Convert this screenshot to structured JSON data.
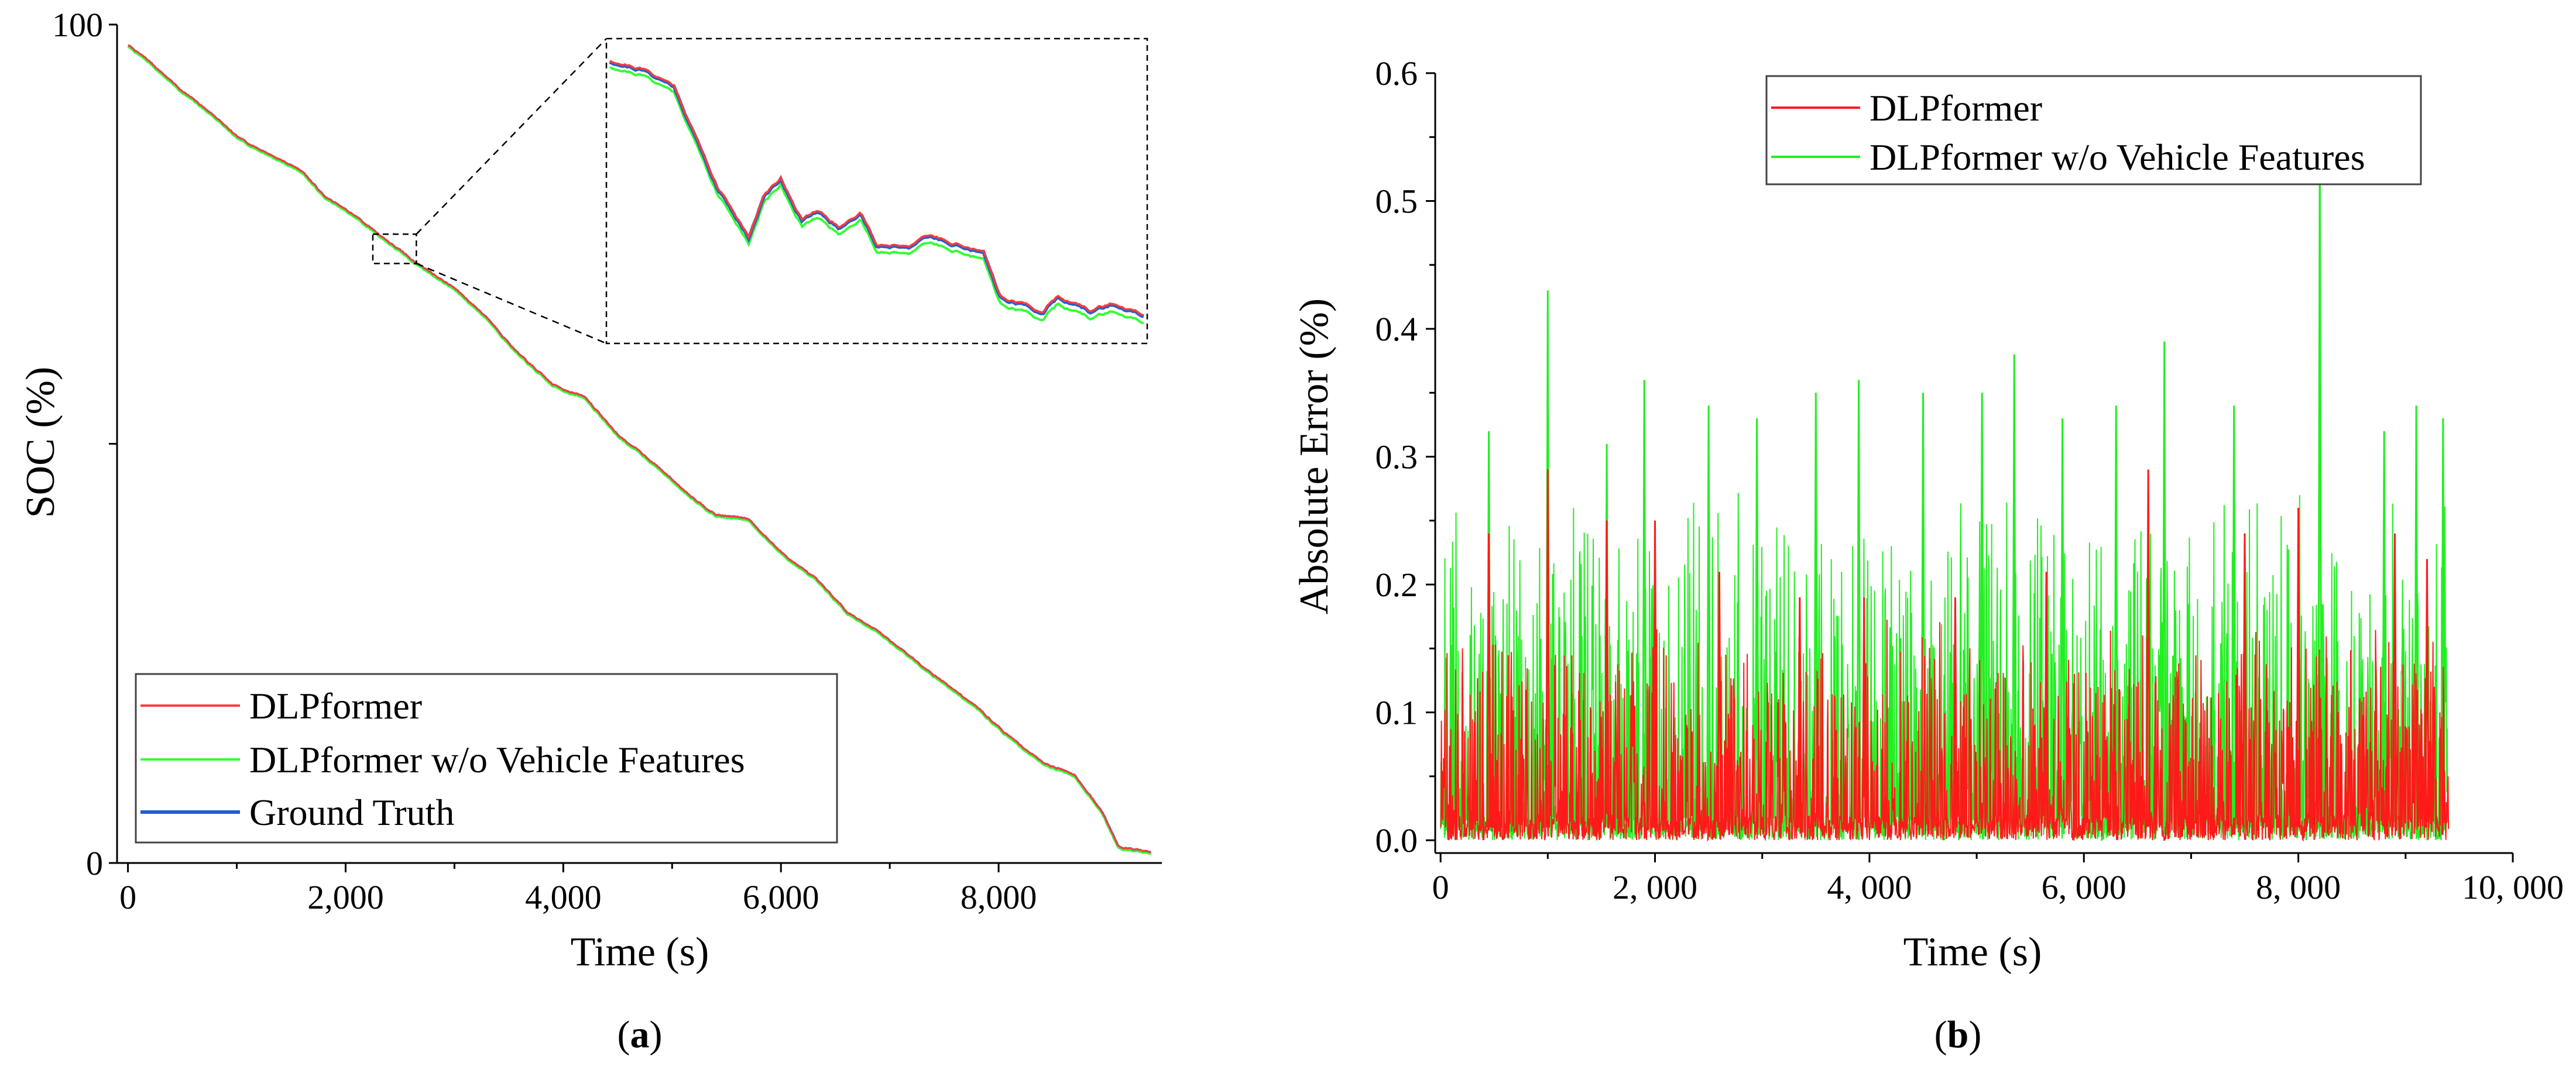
{
  "chart_data": [
    {
      "panel": "a",
      "type": "line",
      "caption": "(a)",
      "caption_letter": "a",
      "xlabel": "Time (s)",
      "ylabel": "SOC (%)",
      "xlim": [
        -100,
        9500
      ],
      "ylim": [
        0,
        100
      ],
      "x_ticks": [
        0,
        2000,
        4000,
        6000,
        8000
      ],
      "x_tick_labels": [
        "0",
        "2,000",
        "4,000",
        "6,000",
        "8,000"
      ],
      "y_tick_labels": [
        "0",
        "100"
      ],
      "y_major_ticks": [
        0,
        50,
        100
      ],
      "duration_s": 9400,
      "soc_keypoints": {
        "x": [
          0,
          200,
          500,
          800,
          1000,
          1300,
          1600,
          1800,
          2100,
          2400,
          2600,
          3000,
          3300,
          3600,
          3900,
          4200,
          4500,
          4800,
          5100,
          5400,
          5700,
          6000,
          6300,
          6600,
          6900,
          7200,
          7500,
          7800,
          8100,
          8400,
          8700,
          8950,
          9100,
          9400
        ],
        "y": [
          97.5,
          95.5,
          92.0,
          89.0,
          86.5,
          84.5,
          82.5,
          79.5,
          77.0,
          74.0,
          72.0,
          68.5,
          65.0,
          60.5,
          57.0,
          55.5,
          51.0,
          48.0,
          44.5,
          41.5,
          41.0,
          37.0,
          34.0,
          30.0,
          27.5,
          24.5,
          21.5,
          18.5,
          15.0,
          12.0,
          10.5,
          6.0,
          2.0,
          1.2
        ]
      },
      "legend": [
        "DLPformer",
        "DLPformer w/o Vehicle Features",
        "Ground Truth"
      ],
      "colors": [
        "#ff3b3b",
        "#33ff33",
        "#1f5fcf"
      ],
      "inset": {
        "source_x_range": [
          2250,
          2650
        ],
        "source_y_range": [
          71.5,
          75.0
        ],
        "description": "zoomed view of the three SOC curves"
      }
    },
    {
      "panel": "b",
      "type": "line",
      "caption": "(b)",
      "caption_letter": "b",
      "xlabel": "Time (s)",
      "ylabel": "Absolute Error (%)",
      "xlim": [
        -50,
        10000
      ],
      "ylim": [
        -0.01,
        0.6
      ],
      "x_ticks": [
        0,
        2000,
        4000,
        6000,
        8000,
        10000
      ],
      "x_tick_labels": [
        "0",
        "2, 000",
        "4, 000",
        "6, 000",
        "8, 000",
        "10, 000"
      ],
      "y_ticks": [
        0.0,
        0.1,
        0.2,
        0.3,
        0.4,
        0.5,
        0.6
      ],
      "y_tick_labels": [
        "0.0",
        "0.1",
        "0.2",
        "0.3",
        "0.4",
        "0.5",
        "0.6"
      ],
      "duration_s": 9400,
      "series": [
        {
          "name": "DLPformer w/o Vehicle Features",
          "color": "#22ee22",
          "typical_max": 0.26,
          "peaks": [
            {
              "x": 450,
              "y": 0.32
            },
            {
              "x": 1000,
              "y": 0.43
            },
            {
              "x": 1550,
              "y": 0.31
            },
            {
              "x": 1900,
              "y": 0.36
            },
            {
              "x": 2500,
              "y": 0.34
            },
            {
              "x": 2950,
              "y": 0.33
            },
            {
              "x": 3500,
              "y": 0.35
            },
            {
              "x": 3900,
              "y": 0.36
            },
            {
              "x": 4500,
              "y": 0.35
            },
            {
              "x": 5050,
              "y": 0.35
            },
            {
              "x": 5350,
              "y": 0.38
            },
            {
              "x": 5800,
              "y": 0.33
            },
            {
              "x": 6300,
              "y": 0.34
            },
            {
              "x": 6750,
              "y": 0.39
            },
            {
              "x": 7400,
              "y": 0.34
            },
            {
              "x": 8200,
              "y": 0.55
            },
            {
              "x": 8800,
              "y": 0.32
            },
            {
              "x": 9100,
              "y": 0.34
            },
            {
              "x": 9350,
              "y": 0.33
            }
          ]
        },
        {
          "name": "DLPformer",
          "color": "#ff1a1a",
          "typical_max": 0.16,
          "peaks": [
            {
              "x": 450,
              "y": 0.24
            },
            {
              "x": 1000,
              "y": 0.29
            },
            {
              "x": 1550,
              "y": 0.25
            },
            {
              "x": 2000,
              "y": 0.25
            },
            {
              "x": 2600,
              "y": 0.21
            },
            {
              "x": 3350,
              "y": 0.19
            },
            {
              "x": 3950,
              "y": 0.19
            },
            {
              "x": 4800,
              "y": 0.19
            },
            {
              "x": 5650,
              "y": 0.21
            },
            {
              "x": 6600,
              "y": 0.29
            },
            {
              "x": 7500,
              "y": 0.24
            },
            {
              "x": 8000,
              "y": 0.26
            },
            {
              "x": 8900,
              "y": 0.24
            },
            {
              "x": 9200,
              "y": 0.22
            }
          ]
        }
      ],
      "legend": [
        "DLPformer",
        "DLPformer w/o Vehicle Features"
      ]
    }
  ]
}
